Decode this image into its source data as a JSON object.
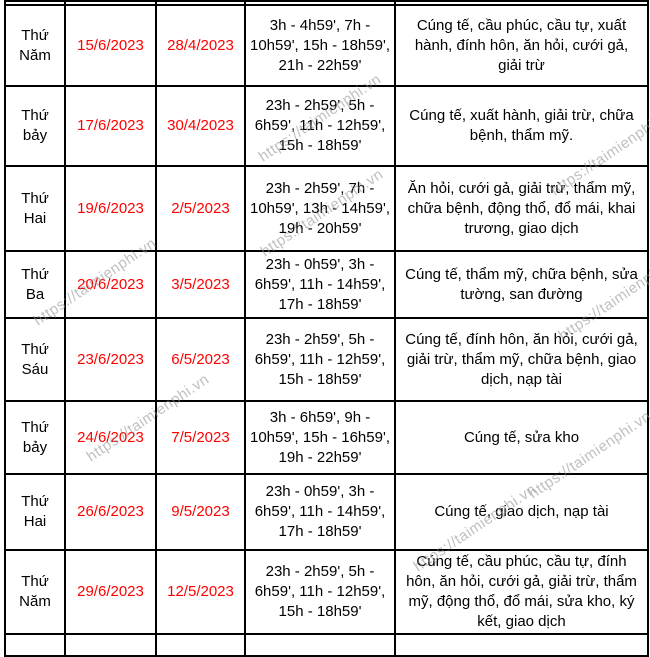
{
  "watermark": {
    "text": "https://taimienphi.vn",
    "color": "#8c8c8c"
  },
  "colors": {
    "date_text": "#ff0000",
    "body_text": "#000000",
    "border": "#000000",
    "background": "#ffffff"
  },
  "table": {
    "rows": [
      {
        "day": "Thứ Năm",
        "solar_date": "15/6/2023",
        "lunar_date": "28/4/2023",
        "hours": "3h - 4h59', 7h - 10h59', 15h - 18h59', 21h - 22h59'",
        "activities": "Cúng tế, cầu phúc, cầu tự, xuất hành, đính hôn, ăn hỏi, cưới gả, giải trừ"
      },
      {
        "day": "Thứ bảy",
        "solar_date": "17/6/2023",
        "lunar_date": "30/4/2023",
        "hours": "23h - 2h59', 5h - 6h59', 11h - 12h59', 15h - 18h59'",
        "activities": "Cúng tế, xuất hành, giải trừ, chữa bệnh, thẩm mỹ."
      },
      {
        "day": "Thứ Hai",
        "solar_date": "19/6/2023",
        "lunar_date": "2/5/2023",
        "hours": "23h - 2h59', 7h - 10h59', 13h - 14h59', 19h - 20h59'",
        "activities": "Ăn hỏi, cưới gả, giải trừ, thẩm mỹ, chữa bệnh, động thổ, đổ mái, khai trương, giao dịch"
      },
      {
        "day": "Thứ Ba",
        "solar_date": "20/6/2023",
        "lunar_date": "3/5/2023",
        "hours": "23h - 0h59', 3h - 6h59', 11h - 14h59', 17h - 18h59'",
        "activities": "Cúng tế, thẩm mỹ, chữa bệnh, sửa tường, san đường"
      },
      {
        "day": "Thứ Sáu",
        "solar_date": "23/6/2023",
        "lunar_date": "6/5/2023",
        "hours": "23h - 2h59', 5h - 6h59', 11h - 12h59', 15h - 18h59'",
        "activities": "Cúng tế, đính hôn, ăn hỏi, cưới gả, giải trừ, thẩm mỹ, chữa bệnh, giao dịch, nạp tài"
      },
      {
        "day": "Thứ bảy",
        "solar_date": "24/6/2023",
        "lunar_date": "7/5/2023",
        "hours": "3h - 6h59', 9h - 10h59', 15h - 16h59', 19h - 22h59'",
        "activities": "Cúng tế, sửa kho"
      },
      {
        "day": "Thứ Hai",
        "solar_date": "26/6/2023",
        "lunar_date": "9/5/2023",
        "hours": "23h - 0h59', 3h - 6h59', 11h - 14h59', 17h - 18h59'",
        "activities": "Cúng tế, giao dịch, nạp tài"
      },
      {
        "day": "Thứ Năm",
        "solar_date": "29/6/2023",
        "lunar_date": "12/5/2023",
        "hours": "23h - 2h59', 5h - 6h59', 11h - 12h59', 15h - 18h59'",
        "activities": "Cúng tế, cầu phúc, cầu tự, đính hôn, ăn hỏi, cưới gả, giải trừ, thẩm mỹ, động thổ, đổ mái, sửa kho, ký kết, giao dịch"
      }
    ]
  }
}
